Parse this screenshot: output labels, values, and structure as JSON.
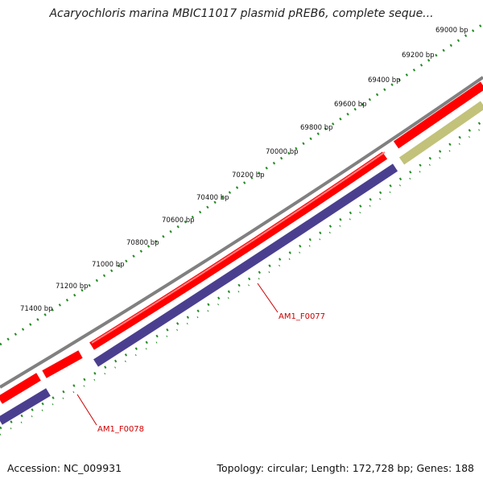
{
  "title": "Acaryochloris marina MBIC11017 plasmid pREB6, complete seque...",
  "footer": {
    "accession": "Accession: NC_009931",
    "summary": "Topology: circular; Length: 172,728 bp; Genes: 188"
  },
  "ruler_labels": [
    "69000 bp",
    "69200 bp",
    "69400 bp",
    "69600 bp",
    "69800 bp",
    "70000 bp",
    "70200 bp",
    "70400 bp",
    "70600 bp",
    "70800 bp",
    "71000 bp",
    "71200 bp",
    "71400 bp"
  ],
  "genes": [
    {
      "label": "AM1_F0077"
    },
    {
      "label": "AM1_F0078"
    }
  ],
  "colors": {
    "backbone": "#808080",
    "cds_forward": "#ff0000",
    "cds_reverse": "#4a3f8f",
    "feature_other": "#c2c27a",
    "ruler": "#228b22",
    "gene_label": "#cc0000"
  }
}
